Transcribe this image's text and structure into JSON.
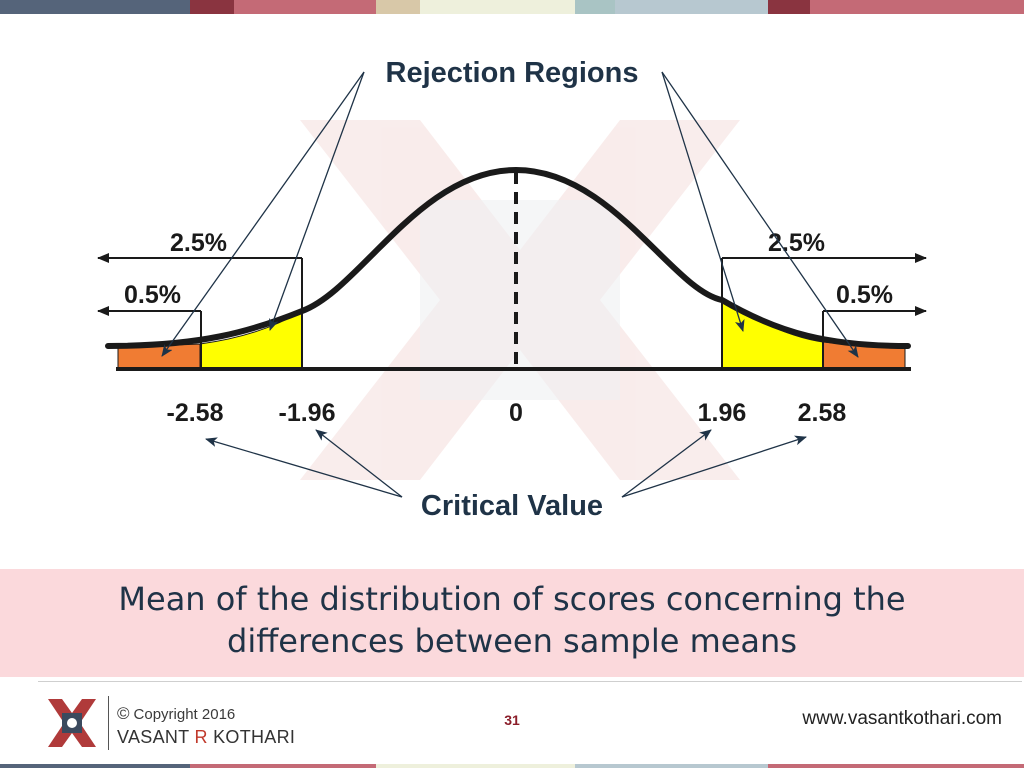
{
  "header_stripes": [
    "#55647a",
    "#8a3440",
    "#c46a76",
    "#d8c8a8",
    "#eef0dc",
    "#a9c4c4",
    "#b7c8d0",
    "#8a3440",
    "#c46a76"
  ],
  "colors": {
    "tail_outer": "#f07c33",
    "tail_inner": "#ffff00",
    "curve": "#1a1a1a",
    "text_dark": "#1f3347",
    "banner": "#fbd9dc"
  },
  "diagram": {
    "rejection_label": "Rejection Regions",
    "critical_label": "Critical Value",
    "left_outer_pct": "0.5%",
    "left_inner_pct": "2.5%",
    "right_inner_pct": "2.5%",
    "right_outer_pct": "0.5%",
    "ticks": [
      "-2.58",
      "-1.96",
      "0",
      "1.96",
      "2.58"
    ]
  },
  "banner_text": [
    "Mean of the distribution of scores concerning the",
    "differences between sample means"
  ],
  "footer": {
    "copyright": "Copyright 2016",
    "copyright_symbol": "©",
    "author_first": "VASANT ",
    "author_initial": "R",
    "author_last": " KOTHARI",
    "page_number": "31",
    "website": "www.vasantkothari.com"
  }
}
